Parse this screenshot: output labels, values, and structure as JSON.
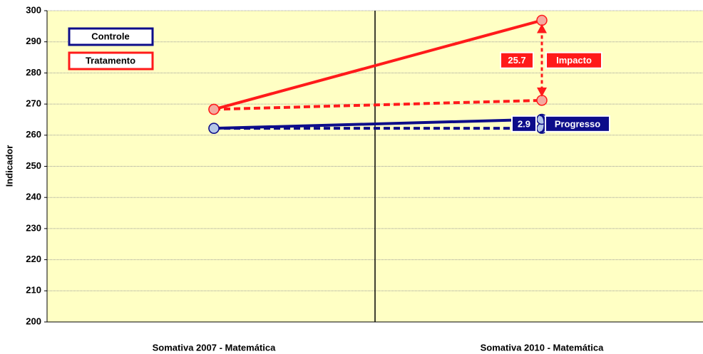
{
  "chart_data": {
    "type": "line",
    "y_label": "Indicador",
    "categories": [
      "Somativa 2007 - Matemática",
      "Somativa 2010 - Matemática"
    ],
    "series": [
      {
        "name": "Controle",
        "color": "#0d0d8a",
        "marker_fill": "#b4c6e7",
        "values": [
          262.2,
          265.1
        ]
      },
      {
        "name": "Tratamento",
        "color": "#ff1a1a",
        "marker_fill": "#f4aaa0",
        "values": [
          268.3,
          296.9
        ]
      }
    ],
    "reference_lines": [
      {
        "color": "#ff1a1a",
        "marker_fill": "#f4aaa0",
        "values": [
          268.3,
          271.2
        ]
      },
      {
        "color": "#0d0d8a",
        "marker_fill": "#b4c6e7",
        "values": [
          262.2,
          262.2
        ]
      }
    ],
    "annotations": [
      {
        "value": 25.7,
        "label": "Impacto",
        "color": "#ff1a1a"
      },
      {
        "value": 2.9,
        "label": "Progresso",
        "color": "#0d0d8a"
      }
    ],
    "ylim": [
      200,
      300
    ],
    "yticks": [
      200,
      210,
      220,
      230,
      240,
      250,
      260,
      270,
      280,
      290,
      300
    ],
    "grid": true,
    "background": "#ffffc4"
  }
}
